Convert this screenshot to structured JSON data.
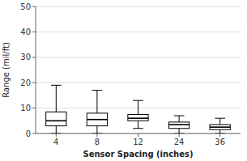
{
  "chart_data": {
    "type": "box",
    "xlabel": "Sensor Spacing (inches)",
    "ylabel": "Range (mil/ft)",
    "categories": [
      "4",
      "8",
      "12",
      "24",
      "36"
    ],
    "boxes": [
      {
        "whislo": 0.0,
        "q1": 3.0,
        "med": 5.0,
        "q3": 8.5,
        "whishi": 19.0
      },
      {
        "whislo": 0.0,
        "q1": 3.0,
        "med": 5.5,
        "q3": 8.0,
        "whishi": 17.0
      },
      {
        "whislo": 2.0,
        "q1": 5.0,
        "med": 6.0,
        "q3": 7.5,
        "whishi": 13.0
      },
      {
        "whislo": 0.0,
        "q1": 2.0,
        "med": 3.5,
        "q3": 4.5,
        "whishi": 7.0
      },
      {
        "whislo": 0.0,
        "q1": 1.5,
        "med": 2.5,
        "q3": 3.5,
        "whishi": 6.0
      }
    ],
    "color": "#000000",
    "ylim": [
      0,
      50
    ],
    "yticks": [
      0,
      10,
      20,
      30,
      40,
      50
    ],
    "grid": true
  }
}
